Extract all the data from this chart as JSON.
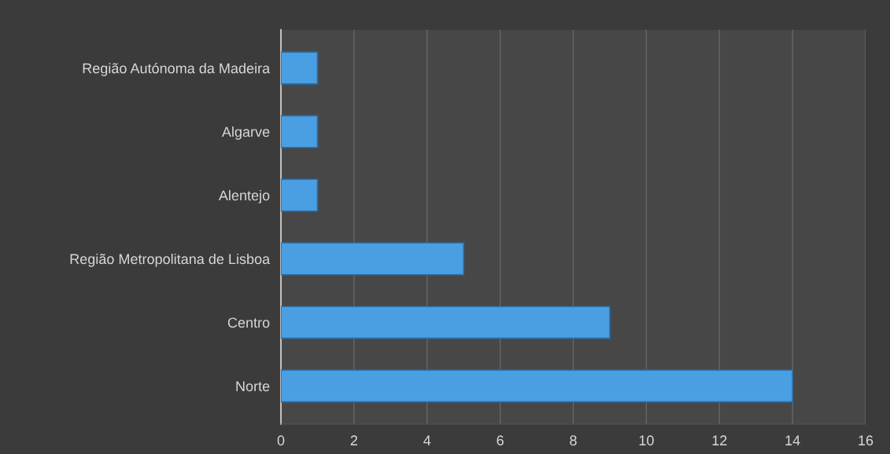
{
  "chart_data": {
    "type": "bar",
    "orientation": "horizontal",
    "categories": [
      "Região Autónoma da Madeira",
      "Algarve",
      "Alentejo",
      "Região Metropolitana de Lisboa",
      "Centro",
      "Norte"
    ],
    "values": [
      1,
      1,
      1,
      5,
      9,
      14
    ],
    "color": "#4a9fe3",
    "xlim": [
      0,
      16
    ],
    "xticks": [
      0,
      2,
      4,
      6,
      8,
      10,
      12,
      14,
      16
    ],
    "grid": "x"
  }
}
